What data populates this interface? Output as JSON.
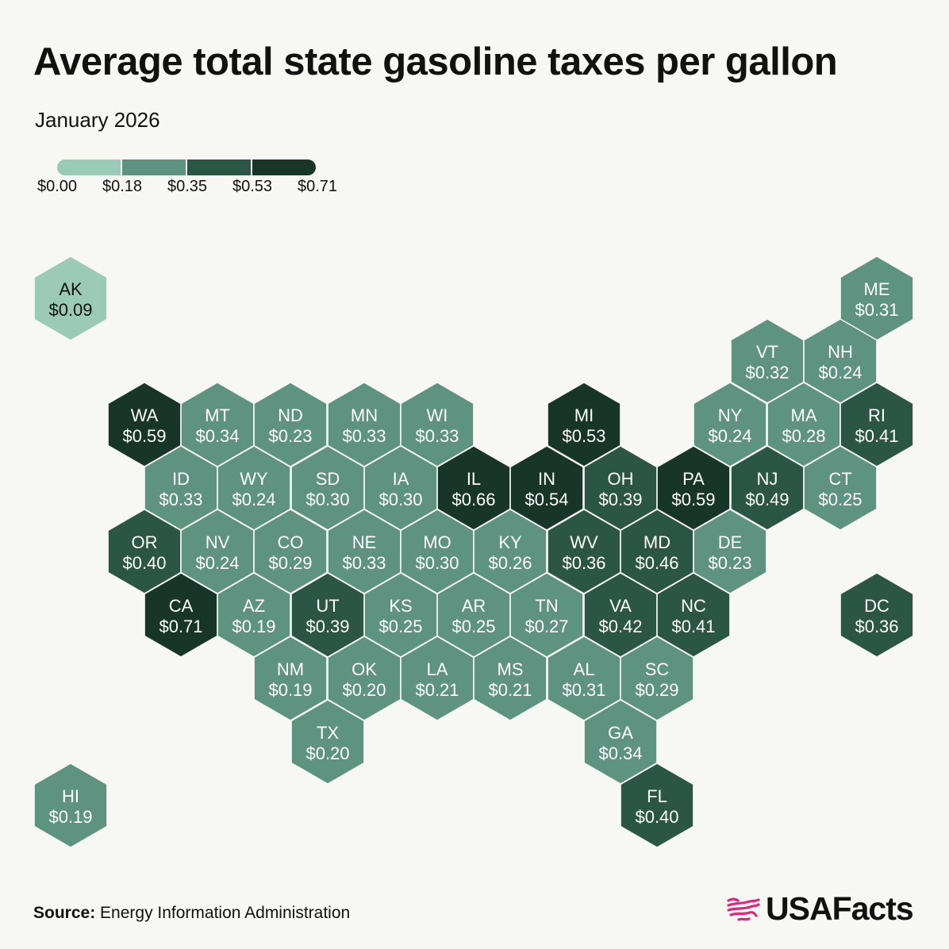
{
  "title": "Average total state gasoline taxes per gallon",
  "subtitle": "January 2026",
  "legend": {
    "ticks": [
      "$0.00",
      "$0.18",
      "$0.35",
      "$0.53",
      "$0.71"
    ],
    "colors": [
      "#9ccab9",
      "#5e9382",
      "#2b5646",
      "#173529"
    ]
  },
  "source_label": "Source:",
  "source_text": "Energy Information Administration",
  "logo_text": "USAFacts",
  "logo_color": "#e0287a",
  "chart_data": {
    "type": "hex-tile-map",
    "title": "Average total state gasoline taxes per gallon",
    "subtitle": "January 2026",
    "value_range": [
      0.0,
      0.71
    ],
    "bins": [
      0.0,
      0.18,
      0.35,
      0.53,
      0.71
    ],
    "states": [
      {
        "abbr": "AK",
        "value": 0.09,
        "label": "$0.09",
        "row": 0,
        "col": 0
      },
      {
        "abbr": "ME",
        "value": 0.31,
        "label": "$0.31",
        "row": 0,
        "col": 11.5
      },
      {
        "abbr": "VT",
        "value": 0.32,
        "label": "$0.32",
        "row": 1,
        "col": 10
      },
      {
        "abbr": "NH",
        "value": 0.24,
        "label": "$0.24",
        "row": 1,
        "col": 11
      },
      {
        "abbr": "WA",
        "value": 0.59,
        "label": "$0.59",
        "row": 2,
        "col": 0
      },
      {
        "abbr": "MT",
        "value": 0.34,
        "label": "$0.34",
        "row": 2,
        "col": 1
      },
      {
        "abbr": "ND",
        "value": 0.23,
        "label": "$0.23",
        "row": 2,
        "col": 2
      },
      {
        "abbr": "MN",
        "value": 0.33,
        "label": "$0.33",
        "row": 2,
        "col": 3
      },
      {
        "abbr": "WI",
        "value": 0.33,
        "label": "$0.33",
        "row": 2,
        "col": 4
      },
      {
        "abbr": "MI",
        "value": 0.53,
        "label": "$0.53",
        "row": 2,
        "col": 6
      },
      {
        "abbr": "NY",
        "value": 0.24,
        "label": "$0.24",
        "row": 2,
        "col": 8
      },
      {
        "abbr": "MA",
        "value": 0.28,
        "label": "$0.28",
        "row": 2,
        "col": 9
      },
      {
        "abbr": "RI",
        "value": 0.41,
        "label": "$0.41",
        "row": 2,
        "col": 10
      },
      {
        "abbr": "ID",
        "value": 0.33,
        "label": "$0.33",
        "row": 3,
        "col": 0
      },
      {
        "abbr": "WY",
        "value": 0.24,
        "label": "$0.24",
        "row": 3,
        "col": 1
      },
      {
        "abbr": "SD",
        "value": 0.3,
        "label": "$0.30",
        "row": 3,
        "col": 2
      },
      {
        "abbr": "IA",
        "value": 0.3,
        "label": "$0.30",
        "row": 3,
        "col": 3
      },
      {
        "abbr": "IL",
        "value": 0.66,
        "label": "$0.66",
        "row": 3,
        "col": 4
      },
      {
        "abbr": "IN",
        "value": 0.54,
        "label": "$0.54",
        "row": 3,
        "col": 5
      },
      {
        "abbr": "OH",
        "value": 0.39,
        "label": "$0.39",
        "row": 3,
        "col": 6
      },
      {
        "abbr": "PA",
        "value": 0.59,
        "label": "$0.59",
        "row": 3,
        "col": 7
      },
      {
        "abbr": "NJ",
        "value": 0.49,
        "label": "$0.49",
        "row": 3,
        "col": 8
      },
      {
        "abbr": "CT",
        "value": 0.25,
        "label": "$0.25",
        "row": 3,
        "col": 9
      },
      {
        "abbr": "OR",
        "value": 0.4,
        "label": "$0.40",
        "row": 4,
        "col": 0
      },
      {
        "abbr": "NV",
        "value": 0.24,
        "label": "$0.24",
        "row": 4,
        "col": 1
      },
      {
        "abbr": "CO",
        "value": 0.29,
        "label": "$0.29",
        "row": 4,
        "col": 2
      },
      {
        "abbr": "NE",
        "value": 0.33,
        "label": "$0.33",
        "row": 4,
        "col": 3
      },
      {
        "abbr": "MO",
        "value": 0.3,
        "label": "$0.30",
        "row": 4,
        "col": 4
      },
      {
        "abbr": "KY",
        "value": 0.26,
        "label": "$0.26",
        "row": 4,
        "col": 5
      },
      {
        "abbr": "WV",
        "value": 0.36,
        "label": "$0.36",
        "row": 4,
        "col": 6
      },
      {
        "abbr": "MD",
        "value": 0.46,
        "label": "$0.46",
        "row": 4,
        "col": 7
      },
      {
        "abbr": "DE",
        "value": 0.23,
        "label": "$0.23",
        "row": 4,
        "col": 8
      },
      {
        "abbr": "CA",
        "value": 0.71,
        "label": "$0.71",
        "row": 5,
        "col": 0
      },
      {
        "abbr": "AZ",
        "value": 0.19,
        "label": "$0.19",
        "row": 5,
        "col": 1
      },
      {
        "abbr": "UT",
        "value": 0.39,
        "label": "$0.39",
        "row": 5,
        "col": 2
      },
      {
        "abbr": "KS",
        "value": 0.25,
        "label": "$0.25",
        "row": 5,
        "col": 3
      },
      {
        "abbr": "AR",
        "value": 0.25,
        "label": "$0.25",
        "row": 5,
        "col": 4
      },
      {
        "abbr": "TN",
        "value": 0.27,
        "label": "$0.27",
        "row": 5,
        "col": 5
      },
      {
        "abbr": "VA",
        "value": 0.42,
        "label": "$0.42",
        "row": 5,
        "col": 6
      },
      {
        "abbr": "NC",
        "value": 0.41,
        "label": "$0.41",
        "row": 5,
        "col": 7
      },
      {
        "abbr": "DC",
        "value": 0.36,
        "label": "$0.36",
        "row": 5,
        "col": 9
      },
      {
        "abbr": "NM",
        "value": 0.19,
        "label": "$0.19",
        "row": 6,
        "col": 0
      },
      {
        "abbr": "OK",
        "value": 0.2,
        "label": "$0.20",
        "row": 6,
        "col": 1
      },
      {
        "abbr": "LA",
        "value": 0.21,
        "label": "$0.21",
        "row": 6,
        "col": 2
      },
      {
        "abbr": "MS",
        "value": 0.21,
        "label": "$0.21",
        "row": 6,
        "col": 3
      },
      {
        "abbr": "AL",
        "value": 0.31,
        "label": "$0.31",
        "row": 6,
        "col": 4
      },
      {
        "abbr": "SC",
        "value": 0.29,
        "label": "$0.29",
        "row": 6,
        "col": 5
      },
      {
        "abbr": "TX",
        "value": 0.2,
        "label": "$0.20",
        "row": 7,
        "col": 0
      },
      {
        "abbr": "GA",
        "value": 0.34,
        "label": "$0.34",
        "row": 7,
        "col": 4
      },
      {
        "abbr": "HI",
        "value": 0.19,
        "label": "$0.19",
        "row": 8,
        "col": 0
      },
      {
        "abbr": "FL",
        "value": 0.4,
        "label": "$0.40",
        "row": 8,
        "col": 4
      }
    ]
  }
}
